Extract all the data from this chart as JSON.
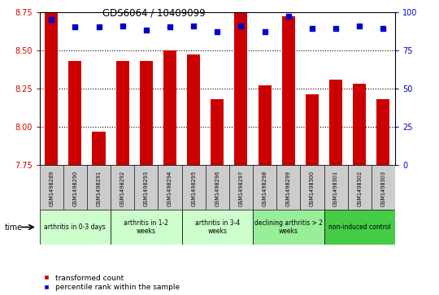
{
  "title": "GDS6064 / 10409099",
  "samples": [
    "GSM1498289",
    "GSM1498290",
    "GSM1498291",
    "GSM1498292",
    "GSM1498293",
    "GSM1498294",
    "GSM1498295",
    "GSM1498296",
    "GSM1498297",
    "GSM1498298",
    "GSM1498299",
    "GSM1498300",
    "GSM1498301",
    "GSM1498302",
    "GSM1498303"
  ],
  "bar_values": [
    8.75,
    8.43,
    7.97,
    8.43,
    8.43,
    8.5,
    8.47,
    8.18,
    8.75,
    8.27,
    8.72,
    8.21,
    8.31,
    8.28,
    8.18
  ],
  "dot_values": [
    95,
    90,
    90,
    91,
    88,
    90,
    91,
    87,
    91,
    87,
    97,
    89,
    89,
    91,
    89
  ],
  "ylim_left": [
    7.75,
    8.75
  ],
  "ylim_right": [
    0,
    100
  ],
  "yticks_left": [
    7.75,
    8.0,
    8.25,
    8.5,
    8.75
  ],
  "yticks_right": [
    0,
    25,
    50,
    75,
    100
  ],
  "bar_color": "#cc0000",
  "dot_color": "#0000cc",
  "bar_bottom": 7.75,
  "groups": [
    {
      "label": "arthritis in 0-3 days",
      "start": 0,
      "end": 3,
      "color": "#ccffcc"
    },
    {
      "label": "arthritis in 1-2\nweeks",
      "start": 3,
      "end": 6,
      "color": "#ccffcc"
    },
    {
      "label": "arthritis in 3-4\nweeks",
      "start": 6,
      "end": 9,
      "color": "#ccffcc"
    },
    {
      "label": "declining arthritis > 2\nweeks",
      "start": 9,
      "end": 12,
      "color": "#99ee99"
    },
    {
      "label": "non-induced control",
      "start": 12,
      "end": 15,
      "color": "#44cc44"
    }
  ],
  "legend_red_label": "transformed count",
  "legend_blue_label": "percentile rank within the sample",
  "time_label": "time",
  "tick_label_color_left": "#cc0000",
  "tick_label_color_right": "#0000cc",
  "sample_box_color": "#cccccc",
  "grid_linestyle": ":",
  "grid_color": "black",
  "grid_linewidth": 0.8
}
